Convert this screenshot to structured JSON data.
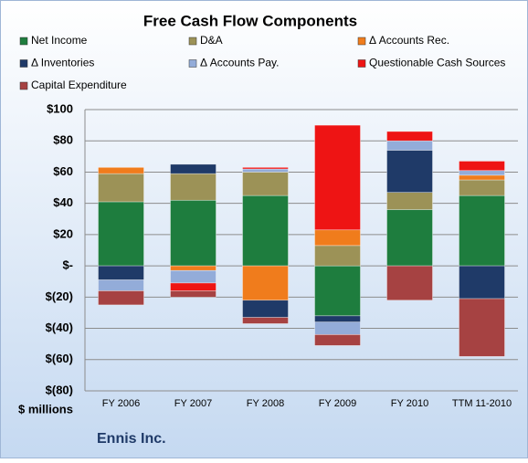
{
  "chart_data": {
    "type": "stacked_bar",
    "title": "Free Cash Flow Components",
    "y_label": "$ millions",
    "footer": "Ennis Inc.",
    "categories": [
      "FY 2006",
      "FY 2007",
      "FY 2008",
      "FY 2009",
      "FY 2010",
      "TTM 11-2010"
    ],
    "series": [
      {
        "name": "Net Income",
        "color": "#1e7d3e",
        "values": [
          41,
          42,
          45,
          -32,
          36,
          45
        ]
      },
      {
        "name": "D&A",
        "color": "#9c9257",
        "values": [
          18,
          17,
          15,
          13,
          11,
          10
        ]
      },
      {
        "name": "Δ Accounts Rec.",
        "color": "#f07c1c",
        "values": [
          4,
          -3,
          -22,
          10,
          0,
          3
        ]
      },
      {
        "name": "Δ Inventories",
        "color": "#1f3a68",
        "values": [
          -9,
          6,
          -11,
          -4,
          27,
          -21
        ]
      },
      {
        "name": "Δ Accounts Pay.",
        "color": "#93acd9",
        "values": [
          -7,
          -8,
          2,
          -8,
          6,
          3
        ]
      },
      {
        "name": "Questionable Cash Sources",
        "color": "#ee1414",
        "values": [
          0,
          -5,
          1,
          67,
          6,
          6
        ]
      },
      {
        "name": "Capital Expenditure",
        "color": "#a64242",
        "values": [
          -9,
          -4,
          -4,
          -7,
          -22,
          -37
        ]
      }
    ],
    "ylim": [
      -80,
      100
    ],
    "yticks": [
      {
        "value": -80,
        "label": "$(80)"
      },
      {
        "value": -60,
        "label": "$(60)"
      },
      {
        "value": -40,
        "label": "$(40)"
      },
      {
        "value": -20,
        "label": "$(20)"
      },
      {
        "value": 0,
        "label": "$-"
      },
      {
        "value": 20,
        "label": "$20"
      },
      {
        "value": 40,
        "label": "$40"
      },
      {
        "value": 60,
        "label": "$60"
      },
      {
        "value": 80,
        "label": "$80"
      },
      {
        "value": 100,
        "label": "$100"
      }
    ],
    "grid": true
  }
}
